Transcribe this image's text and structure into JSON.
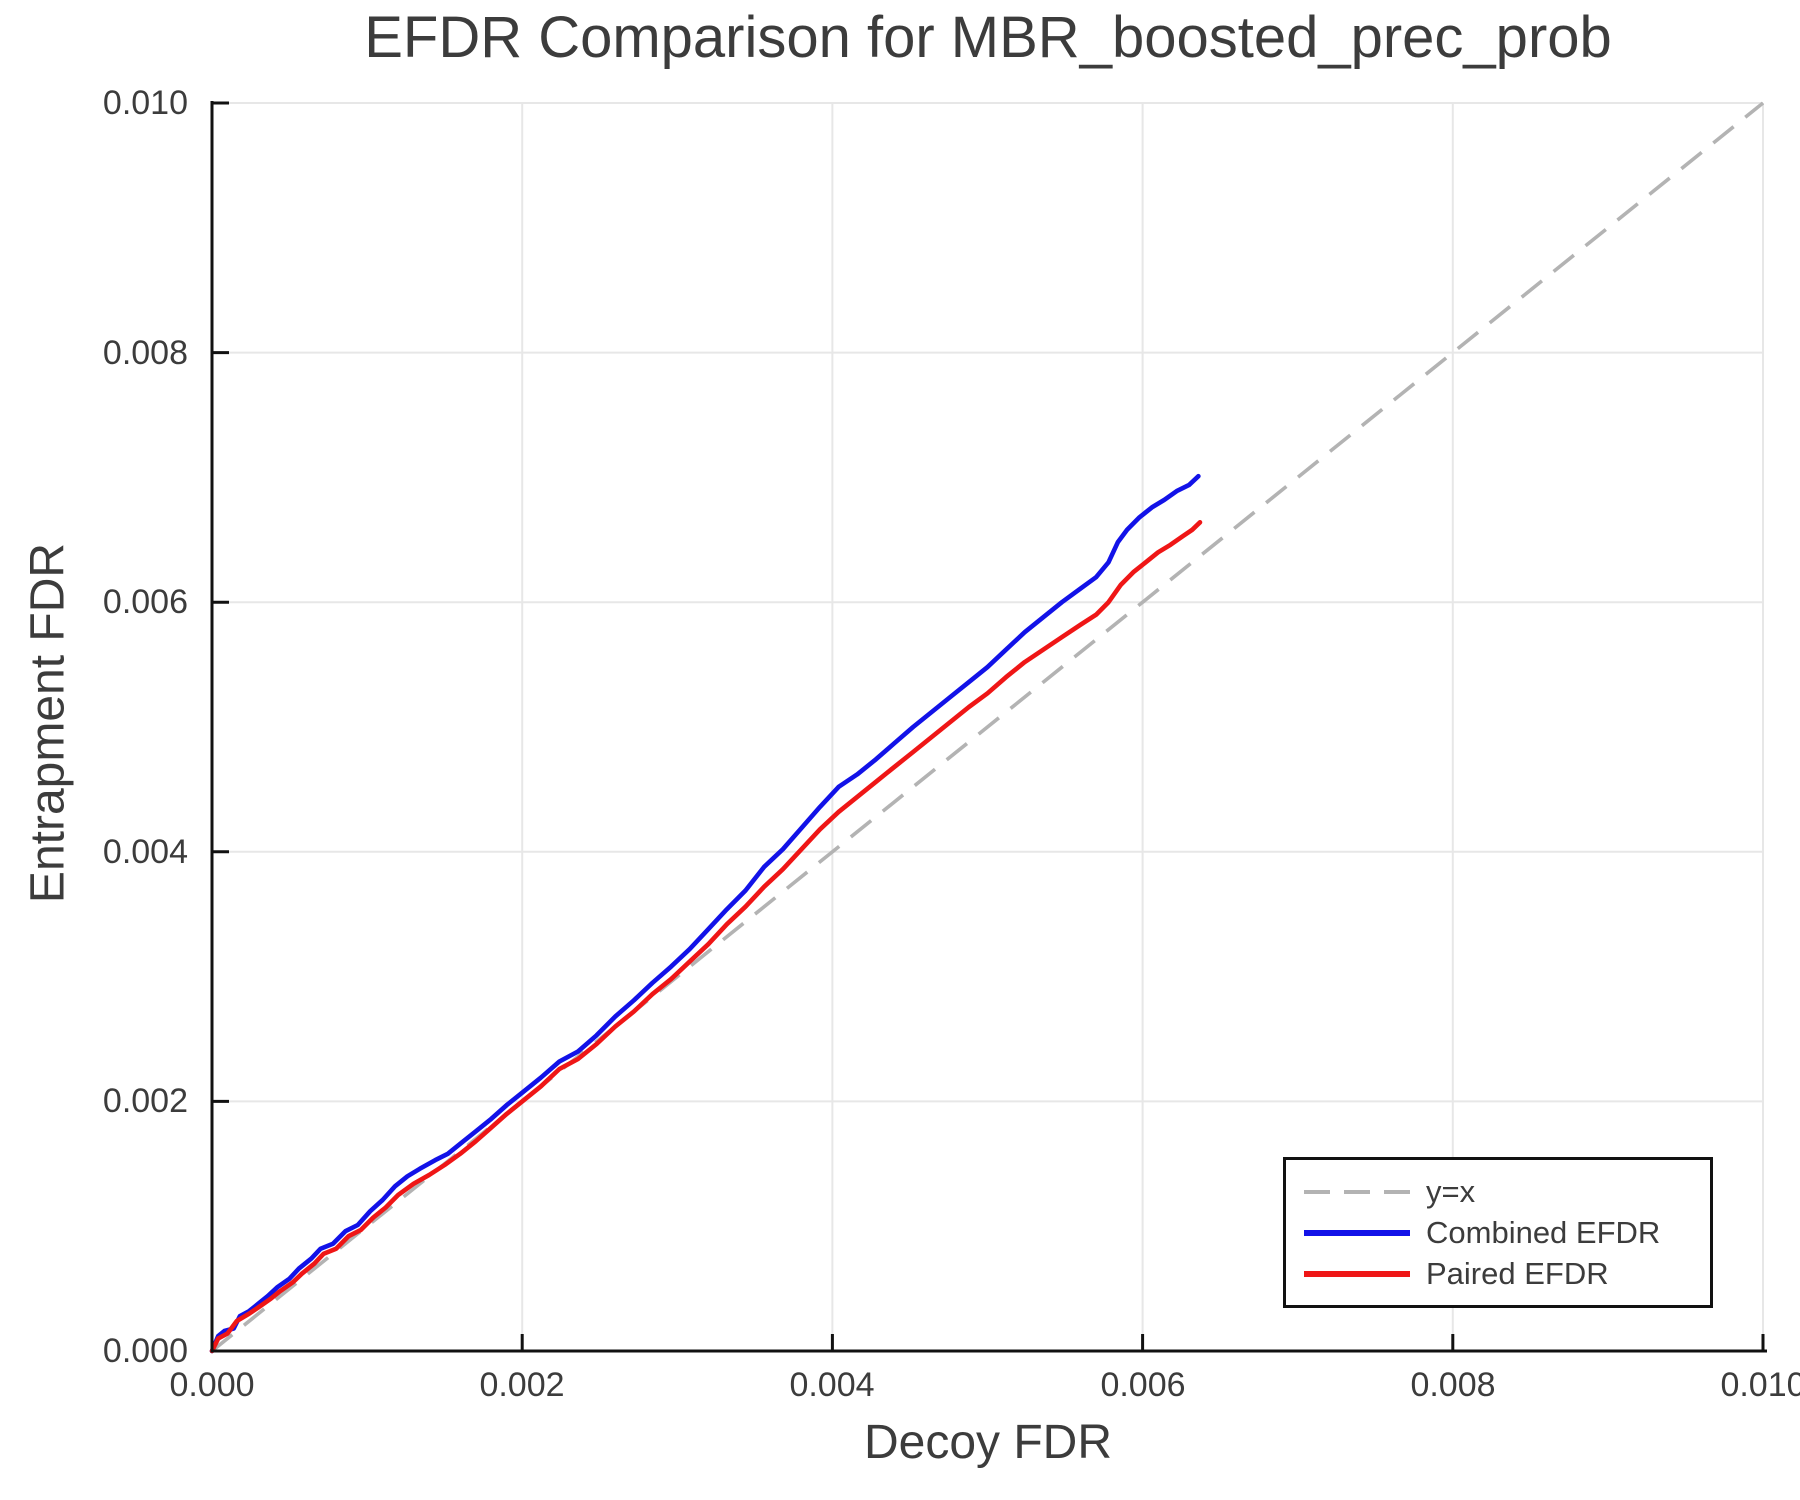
{
  "chart_data": {
    "type": "line",
    "title": "EFDR Comparison for MBR_boosted_prec_prob",
    "xlabel": "Decoy FDR",
    "ylabel": "Entrapment FDR",
    "xlim": [
      0.0,
      0.01
    ],
    "ylim": [
      0.0,
      0.01
    ],
    "grid": true,
    "grid_color": "#e7e7e7",
    "spine_color": "#111111",
    "text_color": "#3c3c3c",
    "x_ticks": [
      0.0,
      0.002,
      0.004,
      0.006,
      0.008,
      0.01
    ],
    "y_ticks": [
      0.0,
      0.002,
      0.004,
      0.006,
      0.008,
      0.01
    ],
    "x_tick_labels": [
      "0.000",
      "0.002",
      "0.004",
      "0.006",
      "0.008",
      "0.010"
    ],
    "y_tick_labels": [
      "0.000",
      "0.002",
      "0.004",
      "0.006",
      "0.008",
      "0.010"
    ],
    "legend": {
      "position": "lower right",
      "entries": [
        {
          "label": "y=x",
          "color": "#b3b3b3",
          "style": "dashed"
        },
        {
          "label": "Combined EFDR",
          "color": "#1212e8",
          "style": "solid"
        },
        {
          "label": "Paired EFDR",
          "color": "#ef1616",
          "style": "solid"
        }
      ]
    },
    "reference_line": {
      "name": "y=x",
      "style": "dashed",
      "color": "#b3b3b3",
      "from": [
        0.0,
        0.0
      ],
      "to": [
        0.01,
        0.01
      ]
    },
    "series": [
      {
        "name": "Combined EFDR",
        "color": "#1212e8",
        "style": "solid",
        "points": [
          [
            0.0,
            0.0
          ],
          [
            4e-05,
            0.00012
          ],
          [
            8e-05,
            0.00016
          ],
          [
            0.00014,
            0.00018
          ],
          [
            0.00018,
            0.00028
          ],
          [
            0.00024,
            0.00032
          ],
          [
            0.0003,
            0.00038
          ],
          [
            0.00036,
            0.00044
          ],
          [
            0.00042,
            0.00051
          ],
          [
            0.0005,
            0.00058
          ],
          [
            0.00056,
            0.00066
          ],
          [
            0.00064,
            0.00074
          ],
          [
            0.0007,
            0.00082
          ],
          [
            0.00078,
            0.00086
          ],
          [
            0.00086,
            0.00096
          ],
          [
            0.00094,
            0.00101
          ],
          [
            0.00102,
            0.00112
          ],
          [
            0.0011,
            0.00121
          ],
          [
            0.00118,
            0.00132
          ],
          [
            0.00126,
            0.0014
          ],
          [
            0.00134,
            0.00146
          ],
          [
            0.00144,
            0.00153
          ],
          [
            0.00152,
            0.00158
          ],
          [
            0.0016,
            0.00166
          ],
          [
            0.0017,
            0.00176
          ],
          [
            0.0018,
            0.00186
          ],
          [
            0.0019,
            0.00197
          ],
          [
            0.002,
            0.00207
          ],
          [
            0.00212,
            0.00219
          ],
          [
            0.00224,
            0.00232
          ],
          [
            0.00236,
            0.0024
          ],
          [
            0.00248,
            0.00253
          ],
          [
            0.0026,
            0.00268
          ],
          [
            0.00272,
            0.00281
          ],
          [
            0.00284,
            0.00295
          ],
          [
            0.00296,
            0.00308
          ],
          [
            0.00308,
            0.00322
          ],
          [
            0.0032,
            0.00338
          ],
          [
            0.00332,
            0.00354
          ],
          [
            0.00344,
            0.00369
          ],
          [
            0.00356,
            0.00388
          ],
          [
            0.00368,
            0.00402
          ],
          [
            0.0038,
            0.00419
          ],
          [
            0.00392,
            0.00436
          ],
          [
            0.00404,
            0.00452
          ],
          [
            0.00416,
            0.00462
          ],
          [
            0.00428,
            0.00474
          ],
          [
            0.0044,
            0.00487
          ],
          [
            0.00452,
            0.005
          ],
          [
            0.00464,
            0.00512
          ],
          [
            0.00476,
            0.00524
          ],
          [
            0.00488,
            0.00536
          ],
          [
            0.005,
            0.00548
          ],
          [
            0.00512,
            0.00562
          ],
          [
            0.00524,
            0.00576
          ],
          [
            0.00536,
            0.00588
          ],
          [
            0.00548,
            0.006
          ],
          [
            0.0056,
            0.00611
          ],
          [
            0.0057,
            0.0062
          ],
          [
            0.00578,
            0.00632
          ],
          [
            0.00584,
            0.00648
          ],
          [
            0.0059,
            0.00658
          ],
          [
            0.00598,
            0.00668
          ],
          [
            0.00606,
            0.00676
          ],
          [
            0.00614,
            0.00682
          ],
          [
            0.00622,
            0.00689
          ],
          [
            0.0063,
            0.00694
          ],
          [
            0.00636,
            0.00701
          ]
        ]
      },
      {
        "name": "Paired EFDR",
        "color": "#ef1616",
        "style": "solid",
        "points": [
          [
            0.0,
            0.0
          ],
          [
            4e-05,
            0.0001
          ],
          [
            0.0001,
            0.00014
          ],
          [
            0.00016,
            0.00024
          ],
          [
            0.00024,
            0.0003
          ],
          [
            0.0003,
            0.00035
          ],
          [
            0.00038,
            0.00042
          ],
          [
            0.00044,
            0.00048
          ],
          [
            0.00052,
            0.00055
          ],
          [
            0.00058,
            0.00062
          ],
          [
            0.00066,
            0.0007
          ],
          [
            0.00072,
            0.00078
          ],
          [
            0.0008,
            0.00082
          ],
          [
            0.00088,
            0.00092
          ],
          [
            0.00096,
            0.00097
          ],
          [
            0.00104,
            0.00107
          ],
          [
            0.00112,
            0.00115
          ],
          [
            0.0012,
            0.00125
          ],
          [
            0.0013,
            0.00134
          ],
          [
            0.0014,
            0.00141
          ],
          [
            0.0015,
            0.00149
          ],
          [
            0.0016,
            0.00158
          ],
          [
            0.0017,
            0.00168
          ],
          [
            0.0018,
            0.00179
          ],
          [
            0.0019,
            0.0019
          ],
          [
            0.002,
            0.002
          ],
          [
            0.00212,
            0.00212
          ],
          [
            0.00224,
            0.00226
          ],
          [
            0.00236,
            0.00234
          ],
          [
            0.00248,
            0.00246
          ],
          [
            0.0026,
            0.0026
          ],
          [
            0.00272,
            0.00272
          ],
          [
            0.00284,
            0.00286
          ],
          [
            0.00296,
            0.00298
          ],
          [
            0.00308,
            0.00312
          ],
          [
            0.0032,
            0.00326
          ],
          [
            0.00332,
            0.00342
          ],
          [
            0.00344,
            0.00356
          ],
          [
            0.00356,
            0.00372
          ],
          [
            0.00368,
            0.00386
          ],
          [
            0.0038,
            0.00402
          ],
          [
            0.00392,
            0.00418
          ],
          [
            0.00404,
            0.00432
          ],
          [
            0.00416,
            0.00444
          ],
          [
            0.00428,
            0.00456
          ],
          [
            0.0044,
            0.00468
          ],
          [
            0.00452,
            0.0048
          ],
          [
            0.00464,
            0.00492
          ],
          [
            0.00476,
            0.00504
          ],
          [
            0.00488,
            0.00516
          ],
          [
            0.005,
            0.00527
          ],
          [
            0.00512,
            0.0054
          ],
          [
            0.00524,
            0.00552
          ],
          [
            0.00536,
            0.00562
          ],
          [
            0.00548,
            0.00572
          ],
          [
            0.0056,
            0.00582
          ],
          [
            0.0057,
            0.0059
          ],
          [
            0.00578,
            0.006
          ],
          [
            0.00586,
            0.00614
          ],
          [
            0.00594,
            0.00624
          ],
          [
            0.00602,
            0.00632
          ],
          [
            0.0061,
            0.0064
          ],
          [
            0.00618,
            0.00646
          ],
          [
            0.00626,
            0.00653
          ],
          [
            0.00632,
            0.00658
          ],
          [
            0.00637,
            0.00664
          ]
        ]
      }
    ]
  }
}
